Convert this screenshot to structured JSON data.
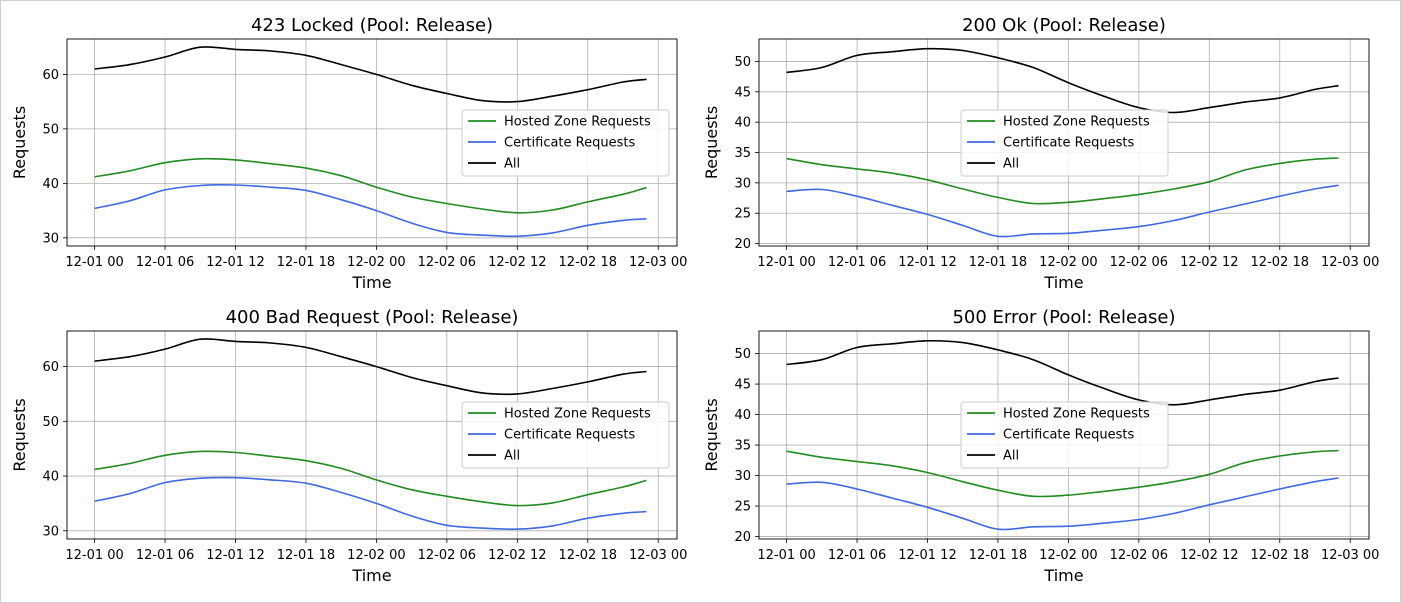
{
  "legend_labels": [
    "Hosted Zone Requests",
    "Certificate Requests",
    "All"
  ],
  "series_colors": [
    "#228b22",
    "#4169e1",
    "#000000"
  ],
  "chart_data": [
    {
      "type": "line",
      "title": "423 Locked (Pool: Release)",
      "xlabel": "Time",
      "ylabel": "Requests",
      "x_ticks": [
        "12-01 00",
        "12-01 06",
        "12-01 12",
        "12-01 18",
        "12-02 00",
        "12-02 06",
        "12-02 12",
        "12-02 18",
        "12-03 00"
      ],
      "x_hours": [
        0,
        6,
        12,
        18,
        24,
        30,
        36,
        42,
        48
      ],
      "xlim": [
        -2.35,
        49.6
      ],
      "y_ticks": [
        30,
        40,
        50,
        60
      ],
      "ylim": [
        28.5,
        66.5
      ],
      "grid": true,
      "legend_position": "center-right",
      "series": [
        {
          "name": "Hosted Zone Requests",
          "color": "#228b22",
          "x": [
            0,
            3,
            6,
            9,
            12,
            15,
            18,
            21,
            24,
            27,
            30,
            33,
            36,
            39,
            42,
            45,
            47
          ],
          "values": [
            41.2,
            42.3,
            43.8,
            44.5,
            44.3,
            43.6,
            42.8,
            41.4,
            39.3,
            37.5,
            36.3,
            35.3,
            34.6,
            35.1,
            36.6,
            38.0,
            39.2
          ]
        },
        {
          "name": "Certificate Requests",
          "color": "#4169e1",
          "x": [
            0,
            3,
            6,
            9,
            12,
            15,
            18,
            21,
            24,
            27,
            30,
            33,
            36,
            39,
            42,
            45,
            47
          ],
          "values": [
            35.4,
            36.8,
            38.8,
            39.6,
            39.7,
            39.3,
            38.7,
            37.0,
            35.0,
            32.7,
            31.0,
            30.5,
            30.3,
            30.9,
            32.3,
            33.2,
            33.5
          ]
        },
        {
          "name": "All",
          "color": "#000000",
          "x": [
            0,
            3,
            6,
            9,
            12,
            15,
            18,
            21,
            24,
            27,
            30,
            33,
            36,
            39,
            42,
            45,
            47
          ],
          "values": [
            61.0,
            61.8,
            63.2,
            65.0,
            64.6,
            64.3,
            63.5,
            61.8,
            60.0,
            58.0,
            56.5,
            55.2,
            55.0,
            56.0,
            57.2,
            58.6,
            59.1
          ]
        }
      ]
    },
    {
      "type": "line",
      "title": "200 Ok (Pool: Release)",
      "xlabel": "Time",
      "ylabel": "Requests",
      "x_ticks": [
        "12-01 00",
        "12-01 06",
        "12-01 12",
        "12-01 18",
        "12-02 00",
        "12-02 06",
        "12-02 12",
        "12-02 18",
        "12-03 00"
      ],
      "x_hours": [
        0,
        6,
        12,
        18,
        24,
        30,
        36,
        42,
        48
      ],
      "xlim": [
        -2.35,
        49.6
      ],
      "y_ticks": [
        20,
        25,
        30,
        35,
        40,
        45,
        50
      ],
      "ylim": [
        19.6,
        53.7
      ],
      "grid": true,
      "legend_position": "center",
      "series": [
        {
          "name": "Hosted Zone Requests",
          "color": "#228b22",
          "x": [
            0,
            3,
            6,
            9,
            12,
            15,
            18,
            21,
            24,
            27,
            30,
            33,
            36,
            39,
            42,
            45,
            47
          ],
          "values": [
            34.0,
            33.0,
            32.3,
            31.6,
            30.5,
            29.0,
            27.6,
            26.6,
            26.8,
            27.4,
            28.1,
            29.0,
            30.2,
            32.1,
            33.2,
            33.9,
            34.1
          ]
        },
        {
          "name": "Certificate Requests",
          "color": "#4169e1",
          "x": [
            0,
            3,
            6,
            9,
            12,
            15,
            18,
            21,
            24,
            27,
            30,
            33,
            36,
            39,
            42,
            45,
            47
          ],
          "values": [
            28.6,
            28.9,
            27.8,
            26.3,
            24.8,
            23.0,
            21.2,
            21.6,
            21.7,
            22.2,
            22.8,
            23.8,
            25.2,
            26.5,
            27.8,
            29.0,
            29.6
          ]
        },
        {
          "name": "All",
          "color": "#000000",
          "x": [
            0,
            3,
            6,
            9,
            12,
            15,
            18,
            21,
            24,
            27,
            30,
            33,
            36,
            39,
            42,
            45,
            47
          ],
          "values": [
            48.2,
            49.0,
            51.0,
            51.6,
            52.1,
            51.8,
            50.6,
            49.0,
            46.5,
            44.3,
            42.4,
            41.6,
            42.4,
            43.3,
            44.0,
            45.4,
            46.0
          ]
        }
      ]
    },
    {
      "type": "line",
      "title": "400 Bad Request (Pool: Release)",
      "xlabel": "Time",
      "ylabel": "Requests",
      "x_ticks": [
        "12-01 00",
        "12-01 06",
        "12-01 12",
        "12-01 18",
        "12-02 00",
        "12-02 06",
        "12-02 12",
        "12-02 18",
        "12-03 00"
      ],
      "x_hours": [
        0,
        6,
        12,
        18,
        24,
        30,
        36,
        42,
        48
      ],
      "xlim": [
        -2.35,
        49.6
      ],
      "y_ticks": [
        30,
        40,
        50,
        60
      ],
      "ylim": [
        28.5,
        66.5
      ],
      "grid": true,
      "legend_position": "center-right",
      "series": [
        {
          "name": "Hosted Zone Requests",
          "color": "#228b22",
          "x": [
            0,
            3,
            6,
            9,
            12,
            15,
            18,
            21,
            24,
            27,
            30,
            33,
            36,
            39,
            42,
            45,
            47
          ],
          "values": [
            41.2,
            42.3,
            43.8,
            44.5,
            44.3,
            43.6,
            42.8,
            41.4,
            39.3,
            37.5,
            36.3,
            35.3,
            34.6,
            35.1,
            36.6,
            38.0,
            39.2
          ]
        },
        {
          "name": "Certificate Requests",
          "color": "#4169e1",
          "x": [
            0,
            3,
            6,
            9,
            12,
            15,
            18,
            21,
            24,
            27,
            30,
            33,
            36,
            39,
            42,
            45,
            47
          ],
          "values": [
            35.4,
            36.8,
            38.8,
            39.6,
            39.7,
            39.3,
            38.7,
            37.0,
            35.0,
            32.7,
            31.0,
            30.5,
            30.3,
            30.9,
            32.3,
            33.2,
            33.5
          ]
        },
        {
          "name": "All",
          "color": "#000000",
          "x": [
            0,
            3,
            6,
            9,
            12,
            15,
            18,
            21,
            24,
            27,
            30,
            33,
            36,
            39,
            42,
            45,
            47
          ],
          "values": [
            61.0,
            61.8,
            63.2,
            65.0,
            64.6,
            64.3,
            63.5,
            61.8,
            60.0,
            58.0,
            56.5,
            55.2,
            55.0,
            56.0,
            57.2,
            58.6,
            59.1
          ]
        }
      ]
    },
    {
      "type": "line",
      "title": "500 Error (Pool: Release)",
      "xlabel": "Time",
      "ylabel": "Requests",
      "x_ticks": [
        "12-01 00",
        "12-01 06",
        "12-01 12",
        "12-01 18",
        "12-02 00",
        "12-02 06",
        "12-02 12",
        "12-02 18",
        "12-03 00"
      ],
      "x_hours": [
        0,
        6,
        12,
        18,
        24,
        30,
        36,
        42,
        48
      ],
      "xlim": [
        -2.35,
        49.6
      ],
      "y_ticks": [
        20,
        25,
        30,
        35,
        40,
        45,
        50
      ],
      "ylim": [
        19.6,
        53.7
      ],
      "grid": true,
      "legend_position": "center",
      "series": [
        {
          "name": "Hosted Zone Requests",
          "color": "#228b22",
          "x": [
            0,
            3,
            6,
            9,
            12,
            15,
            18,
            21,
            24,
            27,
            30,
            33,
            36,
            39,
            42,
            45,
            47
          ],
          "values": [
            34.0,
            33.0,
            32.3,
            31.6,
            30.5,
            29.0,
            27.6,
            26.6,
            26.8,
            27.4,
            28.1,
            29.0,
            30.2,
            32.1,
            33.2,
            33.9,
            34.1
          ]
        },
        {
          "name": "Certificate Requests",
          "color": "#4169e1",
          "x": [
            0,
            3,
            6,
            9,
            12,
            15,
            18,
            21,
            24,
            27,
            30,
            33,
            36,
            39,
            42,
            45,
            47
          ],
          "values": [
            28.6,
            28.9,
            27.8,
            26.3,
            24.8,
            23.0,
            21.2,
            21.6,
            21.7,
            22.2,
            22.8,
            23.8,
            25.2,
            26.5,
            27.8,
            29.0,
            29.6
          ]
        },
        {
          "name": "All",
          "color": "#000000",
          "x": [
            0,
            3,
            6,
            9,
            12,
            15,
            18,
            21,
            24,
            27,
            30,
            33,
            36,
            39,
            42,
            45,
            47
          ],
          "values": [
            48.2,
            49.0,
            51.0,
            51.6,
            52.1,
            51.8,
            50.6,
            49.0,
            46.5,
            44.3,
            42.4,
            41.6,
            42.4,
            43.3,
            44.0,
            45.4,
            46.0
          ]
        }
      ]
    }
  ]
}
